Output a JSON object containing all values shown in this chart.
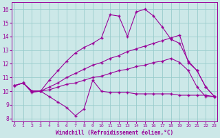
{
  "x_ticks": [
    0,
    1,
    2,
    3,
    4,
    5,
    6,
    7,
    8,
    9,
    10,
    11,
    12,
    13,
    14,
    15,
    16,
    17,
    18,
    19,
    20,
    21,
    22,
    23
  ],
  "xlabel": "Windchill (Refroidissement éolien,°C)",
  "ylim": [
    7.8,
    16.5
  ],
  "xlim": [
    -0.3,
    23.3
  ],
  "yticks": [
    8,
    9,
    10,
    11,
    12,
    13,
    14,
    15,
    16
  ],
  "bg_color": "#cce8e8",
  "line_color": "#990099",
  "grid_color": "#99cccc",
  "line1_x": [
    0,
    1,
    2,
    3,
    4,
    5,
    6,
    7,
    8,
    9,
    10,
    11,
    12,
    13,
    14,
    15,
    16,
    17,
    18,
    19,
    20,
    21,
    22,
    23
  ],
  "line1_y": [
    10.4,
    10.6,
    9.9,
    10.0,
    9.6,
    9.2,
    8.8,
    8.2,
    8.7,
    10.8,
    10.0,
    9.9,
    9.9,
    9.9,
    9.8,
    9.8,
    9.8,
    9.8,
    9.8,
    9.7,
    9.7,
    9.7,
    9.7,
    9.6
  ],
  "line2_x": [
    0,
    1,
    2,
    3,
    4,
    5,
    6,
    7,
    8,
    9,
    10,
    11,
    12,
    13,
    14,
    15,
    16,
    17,
    18,
    19,
    20,
    21,
    22,
    23
  ],
  "line2_y": [
    10.4,
    10.6,
    10.0,
    10.0,
    10.8,
    11.5,
    12.2,
    12.8,
    13.2,
    13.5,
    13.9,
    15.6,
    15.5,
    14.0,
    15.8,
    16.0,
    15.5,
    14.7,
    13.8,
    13.5,
    12.2,
    11.5,
    10.3,
    9.6
  ],
  "line3_x": [
    0,
    1,
    2,
    3,
    4,
    5,
    6,
    7,
    8,
    9,
    10,
    11,
    12,
    13,
    14,
    15,
    16,
    17,
    18,
    19,
    20,
    21,
    22,
    23
  ],
  "line3_y": [
    10.4,
    10.6,
    10.0,
    10.0,
    10.3,
    10.6,
    11.0,
    11.3,
    11.6,
    11.9,
    12.1,
    12.4,
    12.6,
    12.9,
    13.1,
    13.3,
    13.5,
    13.7,
    13.9,
    14.1,
    12.1,
    11.5,
    10.3,
    9.6
  ],
  "line4_x": [
    0,
    1,
    2,
    3,
    4,
    5,
    6,
    7,
    8,
    9,
    10,
    11,
    12,
    13,
    14,
    15,
    16,
    17,
    18,
    19,
    20,
    21,
    22,
    23
  ],
  "line4_y": [
    10.4,
    10.6,
    10.0,
    10.0,
    10.1,
    10.3,
    10.5,
    10.6,
    10.8,
    11.0,
    11.1,
    11.3,
    11.5,
    11.6,
    11.8,
    11.9,
    12.1,
    12.2,
    12.4,
    12.1,
    11.5,
    10.3,
    9.6,
    9.6
  ]
}
